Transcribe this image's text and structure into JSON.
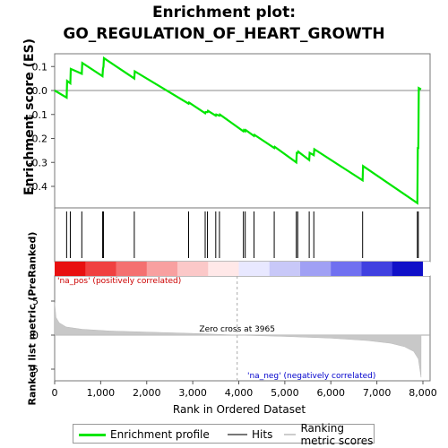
{
  "chart_data": {
    "type": "line",
    "title": "Enrichment plot:",
    "subtitle": "GO_REGULATION_OF_HEART_GROWTH",
    "ylabel": "Enrichment score (ES)",
    "y2label": "Ranked list metric (PreRanked)",
    "xlabel": "Rank in Ordered Dataset",
    "xlim": [
      0,
      8000
    ],
    "ylim": [
      -0.5,
      0.16
    ],
    "y2lim": [
      -6.5,
      7
    ],
    "xticks": [
      "0",
      "1,000",
      "2,000",
      "3,000",
      "4,000",
      "5,000",
      "6,000",
      "7,000",
      "8,000"
    ],
    "yticks": [
      "0.1",
      "0.0",
      "-0.1",
      "-0.2",
      "-0.3",
      "-0.4"
    ],
    "y2ticks": [
      "5",
      "0",
      "-5"
    ],
    "series": [
      {
        "name": "Enrichment profile",
        "color": "#00e600",
        "x": [
          0,
          260,
          270,
          340,
          350,
          590,
          600,
          1040,
          1050,
          1060,
          1070,
          1730,
          1740,
          2910,
          2920,
          3270,
          3280,
          3320,
          3330,
          3500,
          3510,
          3580,
          3590,
          4100,
          4110,
          4140,
          4150,
          4330,
          4340,
          4770,
          4780,
          5250,
          5260,
          5280,
          5290,
          5530,
          5540,
          5630,
          5640,
          6690,
          6700,
          7880,
          7890,
          7900,
          7910,
          7960
        ],
        "y": [
          0.0,
          -0.03,
          0.04,
          0.03,
          0.09,
          0.07,
          0.115,
          0.06,
          0.09,
          0.1,
          0.135,
          0.05,
          0.08,
          -0.055,
          -0.05,
          -0.095,
          -0.09,
          -0.09,
          -0.085,
          -0.105,
          -0.1,
          -0.105,
          -0.1,
          -0.17,
          -0.165,
          -0.17,
          -0.165,
          -0.19,
          -0.185,
          -0.24,
          -0.235,
          -0.3,
          -0.26,
          -0.26,
          -0.255,
          -0.29,
          -0.26,
          -0.27,
          -0.245,
          -0.375,
          -0.315,
          -0.47,
          -0.24,
          -0.24,
          0.01,
          0.005
        ]
      }
    ],
    "hits": [
      260,
      340,
      590,
      1040,
      1060,
      1730,
      2910,
      3270,
      3320,
      3500,
      3580,
      4100,
      4140,
      4330,
      4770,
      5250,
      5280,
      5530,
      5630,
      6690,
      7880,
      7900
    ],
    "heatmap_colors": [
      "#e81010",
      "#f04040",
      "#f47070",
      "#f8a0a0",
      "#fbc8c8",
      "#ffe8e8",
      "#e8e8ff",
      "#c8c8f8",
      "#a0a0f4",
      "#7070f0",
      "#4040e0",
      "#1010c8"
    ],
    "zero_cross_label": "Zero cross at 3965",
    "zero_cross": 3965,
    "pos_label": "'na_pos' (positively correlated)",
    "neg_label": "'na_neg' (negatively correlated)",
    "legend": [
      "Enrichment profile",
      "Hits",
      "Ranking metric scores"
    ],
    "legend_position": "bottom"
  }
}
